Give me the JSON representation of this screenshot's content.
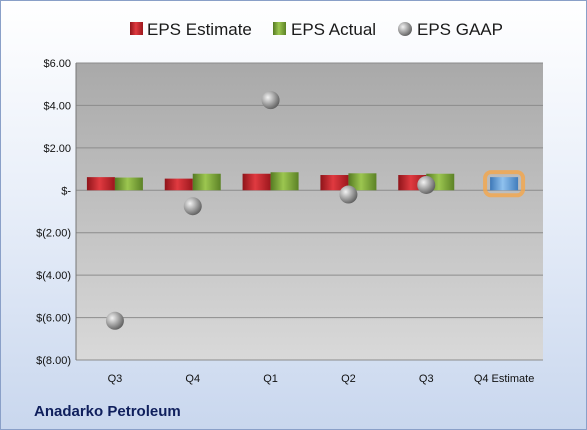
{
  "company": "Anadarko Petroleum",
  "chart_data": {
    "type": "bar",
    "categories": [
      "Q3",
      "Q4",
      "Q1",
      "Q2",
      "Q3",
      "Q4 Estimate"
    ],
    "series": [
      {
        "name": "EPS Estimate",
        "kind": "bar",
        "color": "#c8202a",
        "values": [
          0.62,
          0.55,
          0.78,
          0.72,
          0.72,
          null
        ]
      },
      {
        "name": "EPS Actual",
        "kind": "bar",
        "color": "#7fa83a",
        "values": [
          0.6,
          0.78,
          0.85,
          0.8,
          0.78,
          null
        ]
      },
      {
        "name": "EPS GAAP",
        "kind": "point",
        "color": "#a6a6a6",
        "values": [
          -6.15,
          -0.75,
          4.25,
          -0.2,
          0.25,
          null
        ]
      },
      {
        "name": "Q4 Estimate",
        "kind": "highlight-bar",
        "color": "#6aa3de",
        "glow": "#f5a64a",
        "values": [
          null,
          null,
          null,
          null,
          null,
          0.62
        ]
      }
    ],
    "y_ticks": [
      "$6.00",
      "$4.00",
      "$2.00",
      "$-",
      "$(2.00)",
      "$(4.00)",
      "$(6.00)",
      "$(8.00)"
    ],
    "y_tick_values": [
      6,
      4,
      2,
      0,
      -2,
      -4,
      -6,
      -8
    ],
    "ylim": [
      -8,
      6
    ],
    "grid": true,
    "legend_position": "top"
  }
}
